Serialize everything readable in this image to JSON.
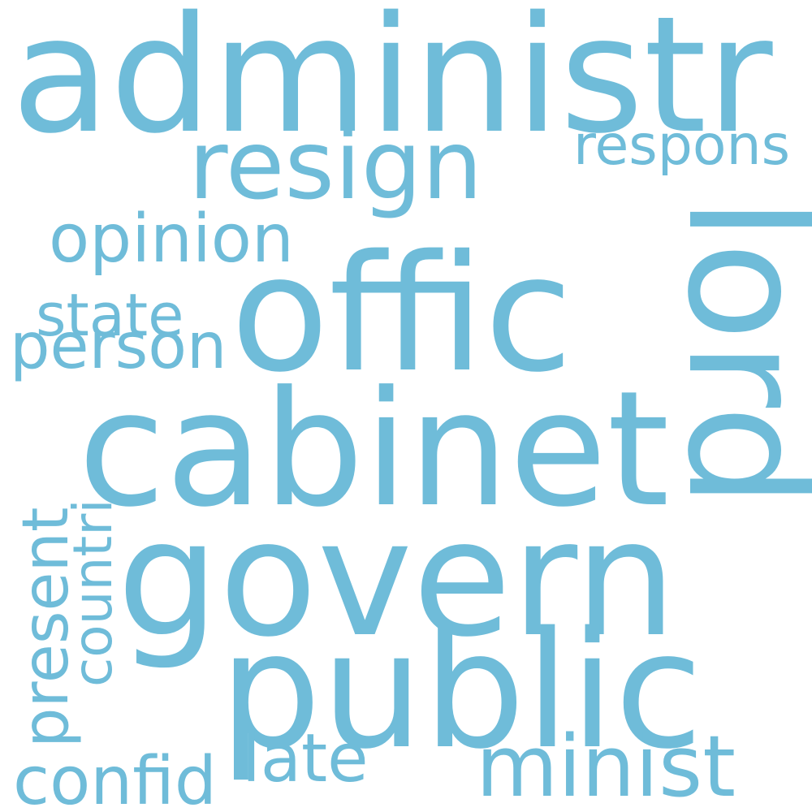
{
  "wordcloud": {
    "color": "#6fbcd9",
    "background": "#ffffff",
    "words": {
      "administr": "administr",
      "resign": "resign",
      "respons": "respons",
      "opinion": "opinion",
      "offic": "offic",
      "lord": "lord",
      "state": "state",
      "person": "person",
      "cabinet": "cabinet",
      "govern": "govern",
      "present": "present",
      "countri": "countri",
      "public": "public",
      "late": "late",
      "minist": "minist",
      "confid": "confid"
    }
  }
}
